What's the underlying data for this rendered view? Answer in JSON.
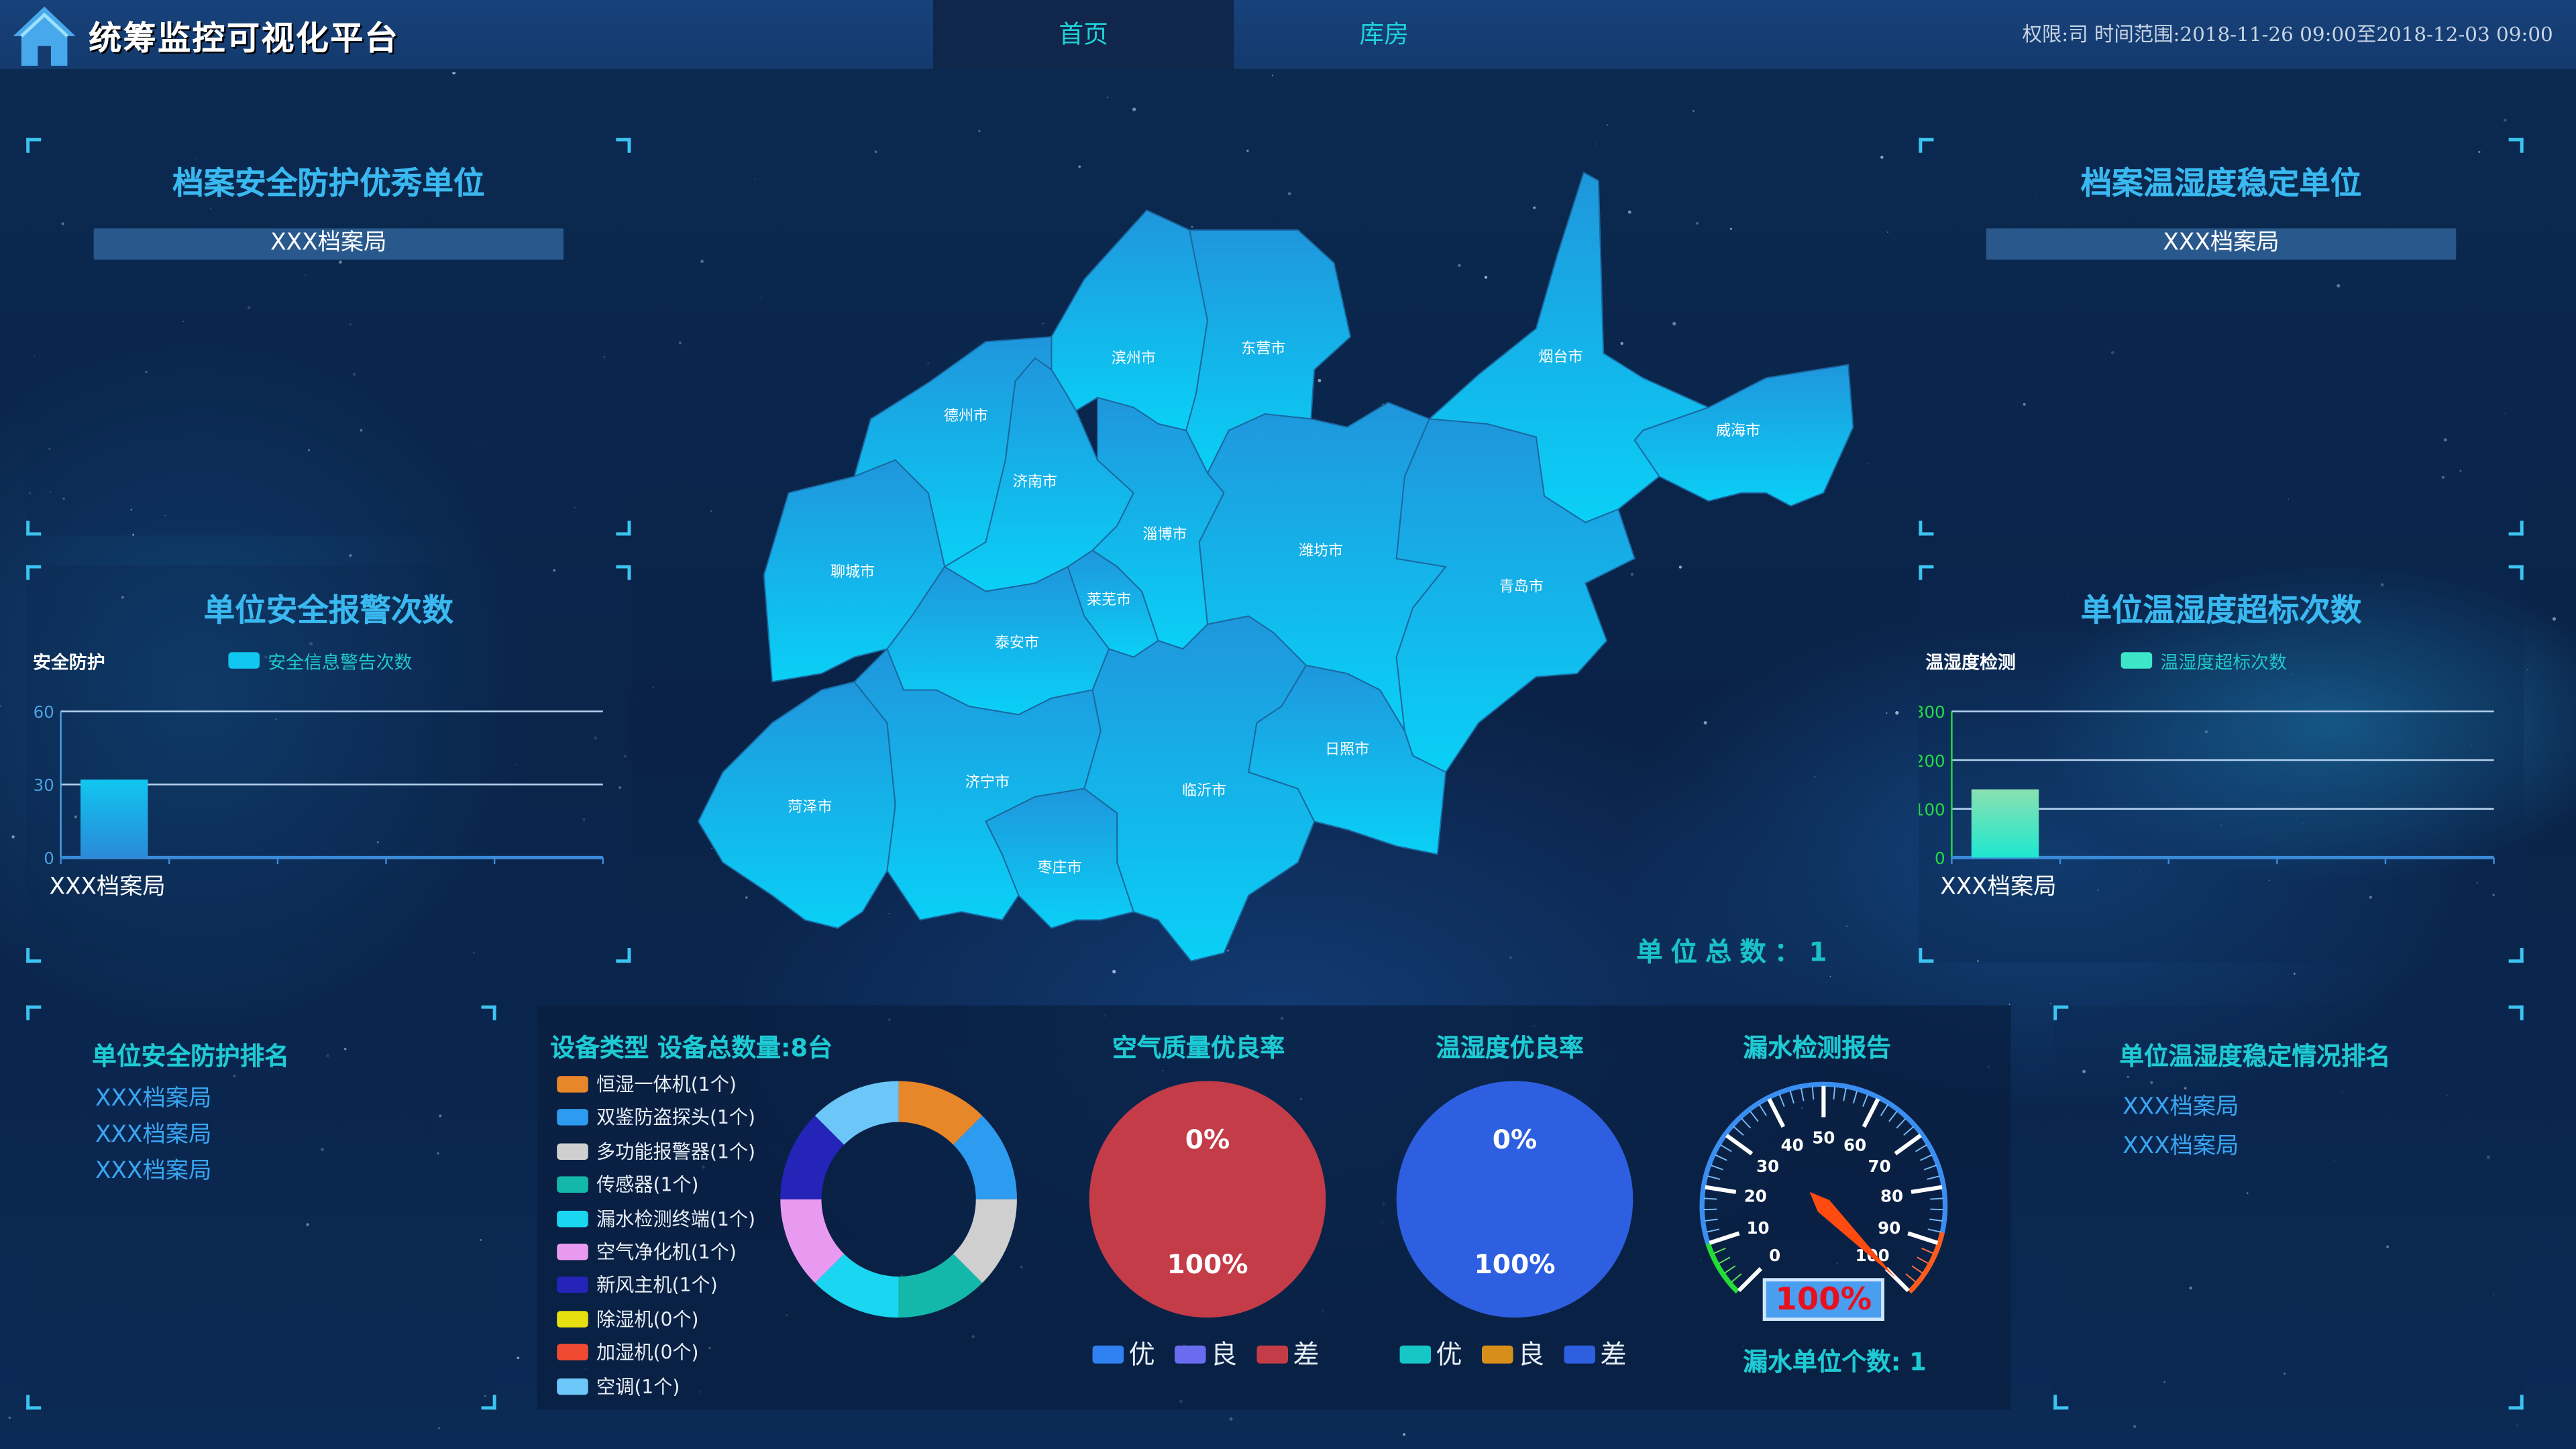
{
  "header": {
    "title": "统筹监控可视化平台",
    "tabs": [
      {
        "label": "首页",
        "active": true
      },
      {
        "label": "库房",
        "active": false
      }
    ],
    "info": "权限:司 时间范围:2018-11-26 09:00至2018-12-03 09:00"
  },
  "colors": {
    "accent": "#1fd3d8",
    "panel_title": "#3ab8f0",
    "map_fill_top": "#1f96dc",
    "map_fill_bottom": "#0ad0f6"
  },
  "top_left": {
    "title": "档案安全防护优秀单位",
    "unit": "XXX档案局"
  },
  "top_right": {
    "title": "档案温湿度稳定单位",
    "unit": "XXX档案局"
  },
  "mid_left": {
    "title": "单位安全报警次数",
    "chart_data": {
      "type": "bar",
      "ylabel": "安全防护",
      "legend": "安全信息警告次数",
      "categories": [
        "XXX档案局"
      ],
      "values": [
        32
      ],
      "yticks": [
        "0",
        "30",
        "60"
      ],
      "ylim": [
        0,
        60
      ],
      "color": "#11c6f0"
    }
  },
  "mid_right": {
    "title": "单位温湿度超标次数",
    "chart_data": {
      "type": "bar",
      "ylabel": "温湿度检测",
      "legend": "温湿度超标次数",
      "categories": [
        "XXX档案局"
      ],
      "values": [
        140
      ],
      "yticks": [
        "0",
        "100",
        "200",
        "300"
      ],
      "ylim": [
        0,
        300
      ],
      "color": "#3ee6c8"
    }
  },
  "map": {
    "cities": [
      "滨州市",
      "东营市",
      "德州市",
      "济南市",
      "淄博市",
      "潍坊市",
      "烟台市",
      "威海市",
      "青岛市",
      "聊城市",
      "泰安市",
      "莱芜市",
      "菏泽市",
      "济宁市",
      "枣庄市",
      "临沂市",
      "日照市"
    ],
    "total_label": "单位总数：1"
  },
  "bottom_left": {
    "title": "单位安全防护排名",
    "items": [
      "XXX档案局",
      "XXX档案局",
      "XXX档案局"
    ]
  },
  "bottom_right": {
    "title": "单位温湿度稳定情况排名",
    "items": [
      "XXX档案局",
      "XXX档案局"
    ]
  },
  "devices": {
    "title": "设备类型 设备总数量:8台",
    "chart_data": {
      "type": "pie",
      "items": [
        {
          "label": "恒湿一体机(1个)",
          "value": 1,
          "color": "#e8862a"
        },
        {
          "label": "双鉴防盗探头(1个)",
          "value": 1,
          "color": "#2d9bf0"
        },
        {
          "label": "多功能报警器(1个)",
          "value": 1,
          "color": "#cfcfcf"
        },
        {
          "label": "传感器(1个)",
          "value": 1,
          "color": "#14b8aa"
        },
        {
          "label": "漏水检测终端(1个)",
          "value": 1,
          "color": "#1ad6f0"
        },
        {
          "label": "空气净化机(1个)",
          "value": 1,
          "color": "#e89af0"
        },
        {
          "label": "新风主机(1个)",
          "value": 1,
          "color": "#2424b8"
        },
        {
          "label": "除湿机(0个)",
          "value": 0,
          "color": "#e6e010"
        },
        {
          "label": "加湿机(0个)",
          "value": 0,
          "color": "#f04a32"
        },
        {
          "label": "空调(1个)",
          "value": 1,
          "color": "#6cc6f8"
        }
      ]
    }
  },
  "air_quality": {
    "title": "空气质量优良率",
    "chart_data": {
      "type": "pie",
      "labels": [
        "0%",
        "100%"
      ],
      "legend": [
        {
          "label": "优",
          "value": 0,
          "color": "#2f80f0"
        },
        {
          "label": "良",
          "value": 0,
          "color": "#6a6cf0"
        },
        {
          "label": "差",
          "value": 100,
          "color": "#c43c48"
        }
      ]
    }
  },
  "humidity": {
    "title": "温湿度优良率",
    "chart_data": {
      "type": "pie",
      "labels": [
        "0%",
        "100%"
      ],
      "legend": [
        {
          "label": "优",
          "value": 0,
          "color": "#17c6c6"
        },
        {
          "label": "良",
          "value": 0,
          "color": "#d88e1b"
        },
        {
          "label": "差",
          "value": 100,
          "color": "#2e5fe0"
        }
      ]
    }
  },
  "leak": {
    "title": "漏水检测报告",
    "gauge": {
      "value": 100,
      "min": 0,
      "max": 100,
      "ticks": [
        "0",
        "10",
        "20",
        "30",
        "40",
        "50",
        "60",
        "70",
        "80",
        "90",
        "100"
      ],
      "display": "100%"
    },
    "count_label": "漏水单位个数: 1"
  }
}
